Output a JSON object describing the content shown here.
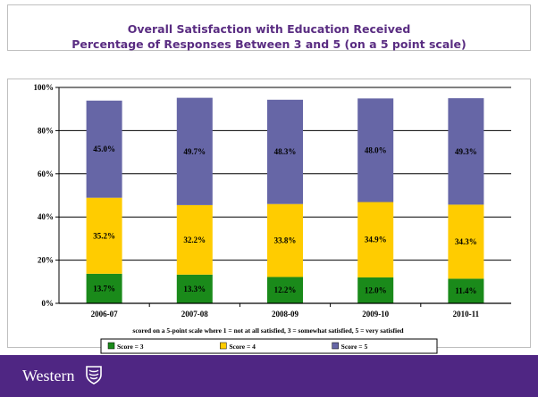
{
  "title_line1": "Overall Satisfaction with Education Received",
  "title_line2": "Percentage of Responses Between 3 and 5 (on a 5 point scale)",
  "footnote": "scored on a 5-point scale where  1 = not at all satisfied,  3 = somewhat satisfied,  5 = very satisfied",
  "brand": "Western",
  "colors": {
    "score3": "#1a8a1a",
    "score4": "#ffcc00",
    "score5": "#6666a6",
    "footer": "#4f2683",
    "title": "#5a2d82"
  },
  "chart_data": {
    "type": "bar",
    "stacked": true,
    "categories": [
      "2006-07",
      "2007-08",
      "2008-09",
      "2009-10",
      "2010-11"
    ],
    "series": [
      {
        "name": "Score = 3",
        "values": [
          13.7,
          13.3,
          12.2,
          12.0,
          11.4
        ],
        "labels": [
          "13.7%",
          "13.3%",
          "12.2%",
          "12.0%",
          "11.4%"
        ]
      },
      {
        "name": "Score = 4",
        "values": [
          35.2,
          32.2,
          33.8,
          34.9,
          34.3
        ],
        "labels": [
          "35.2%",
          "32.2%",
          "33.8%",
          "34.9%",
          "34.3%"
        ]
      },
      {
        "name": "Score = 5",
        "values": [
          45.0,
          49.7,
          48.3,
          48.0,
          49.3
        ],
        "labels": [
          "45.0%",
          "49.7%",
          "48.3%",
          "48.0%",
          "49.3%"
        ]
      }
    ],
    "yticks": [
      "0%",
      "20%",
      "40%",
      "60%",
      "80%",
      "100%"
    ],
    "ylim": [
      0,
      100
    ],
    "grid": true,
    "legend": "bottom"
  }
}
